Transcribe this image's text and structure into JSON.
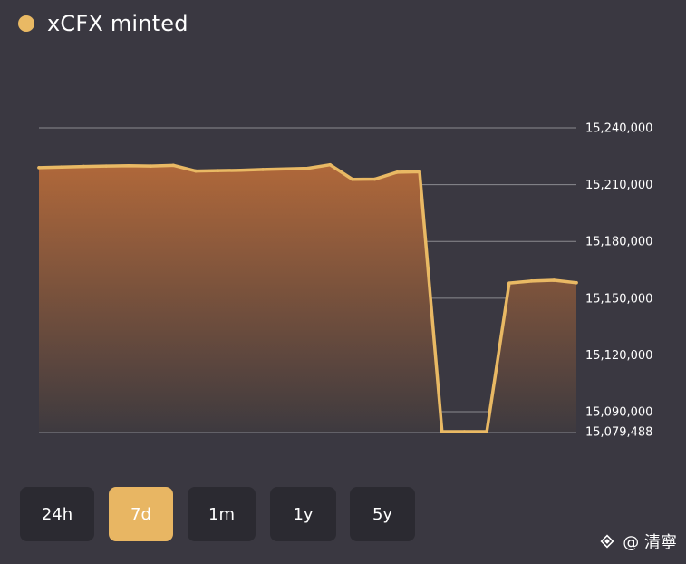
{
  "header": {
    "title": "xCFX minted"
  },
  "colors": {
    "line": "#e9b964",
    "fill_top": "#b0683a",
    "fill_bottom": "#3e3a3f",
    "active_button": "#e8b663",
    "button_bg": "#2b2a31",
    "background": "#3a3841"
  },
  "chart_data": {
    "type": "area",
    "title": "xCFX minted",
    "series": [
      {
        "name": "xCFX minted",
        "values": [
          15219000,
          15219300,
          15219600,
          15219800,
          15220000,
          15219800,
          15220200,
          15217200,
          15217400,
          15217600,
          15218000,
          15218300,
          15218600,
          15220500,
          15212800,
          15212900,
          15216600,
          15216800,
          15079488,
          15079488,
          15079488,
          15158000,
          15159100,
          15159500,
          15158200
        ]
      }
    ],
    "y_ticks": [
      "15,240,000",
      "15,210,000",
      "15,180,000",
      "15,150,000",
      "15,120,000",
      "15,090,000",
      "15,079,488"
    ],
    "y_tick_values": [
      15240000,
      15210000,
      15180000,
      15150000,
      15120000,
      15090000,
      15079488
    ],
    "ylim": [
      15079488,
      15240000
    ],
    "grid": true
  },
  "range_buttons": [
    {
      "label": "24h",
      "active": false
    },
    {
      "label": "7d",
      "active": true
    },
    {
      "label": "1m",
      "active": false
    },
    {
      "label": "1y",
      "active": false
    },
    {
      "label": "5y",
      "active": false
    }
  ],
  "watermark": {
    "text": "@ 清寧",
    "icon": "binance-square-icon"
  }
}
